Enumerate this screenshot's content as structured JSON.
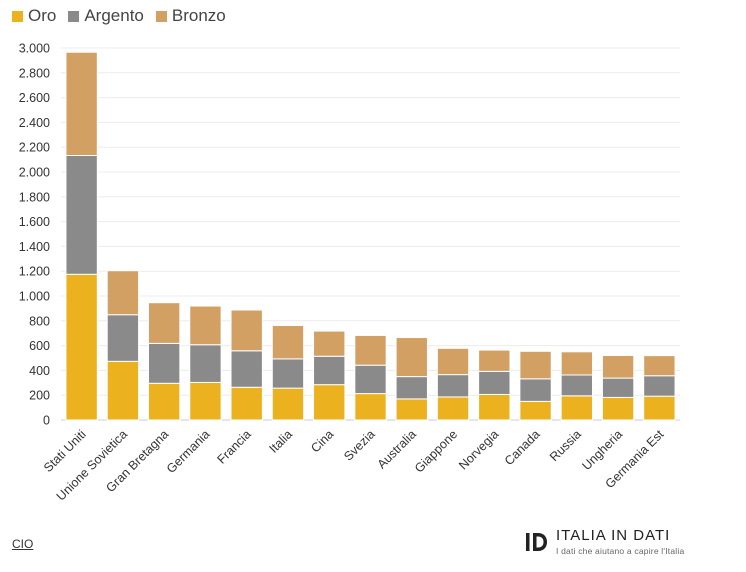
{
  "chart_data": {
    "type": "bar",
    "stacked": true,
    "categories": [
      "Stati Uniti",
      "Unione Sovietica",
      "Gran Bretagna",
      "Germania",
      "Francia",
      "Italia",
      "Cina",
      "Svezia",
      "Australia",
      "Giappone",
      "Norvegia",
      "Canada",
      "Russia",
      "Ungheria",
      "Germania Est"
    ],
    "series": [
      {
        "name": "Oro",
        "color": "#ebb11e",
        "values": [
          1175,
          473,
          296,
          303,
          264,
          257,
          285,
          213,
          170,
          186,
          206,
          150,
          195,
          182,
          192
        ]
      },
      {
        "name": "Argento",
        "color": "#8a8a8a",
        "values": [
          958,
          376,
          322,
          304,
          294,
          236,
          229,
          229,
          180,
          180,
          186,
          182,
          168,
          156,
          165
        ]
      },
      {
        "name": "Bronzo",
        "color": "#d3a063",
        "values": [
          833,
          355,
          328,
          312,
          329,
          269,
          203,
          240,
          315,
          212,
          172,
          222,
          187,
          182,
          162
        ]
      }
    ],
    "ylim": [
      0,
      3000
    ],
    "yticks": [
      0,
      200,
      400,
      600,
      800,
      1000,
      1200,
      1400,
      1600,
      1800,
      2000,
      2200,
      2400,
      2600,
      2800,
      3000
    ],
    "ytick_labels": [
      "0",
      "200",
      "400",
      "600",
      "800",
      "1.000",
      "1.200",
      "1.400",
      "1.600",
      "1.800",
      "2.000",
      "2.200",
      "2.400",
      "2.600",
      "2.800",
      "3.000"
    ],
    "title": "",
    "xlabel": "",
    "ylabel": "",
    "grid": true,
    "legend_position": "top-left"
  },
  "legend": {
    "items": [
      {
        "label": "Oro",
        "color": "#ebb11e"
      },
      {
        "label": "Argento",
        "color": "#8a8a8a"
      },
      {
        "label": "Bronzo",
        "color": "#d3a063"
      }
    ]
  },
  "footer": {
    "source_label": "CIO",
    "brand_name": "ITALIA IN DATI",
    "brand_tagline": "I dati che aiutano a capire l'Italia"
  }
}
